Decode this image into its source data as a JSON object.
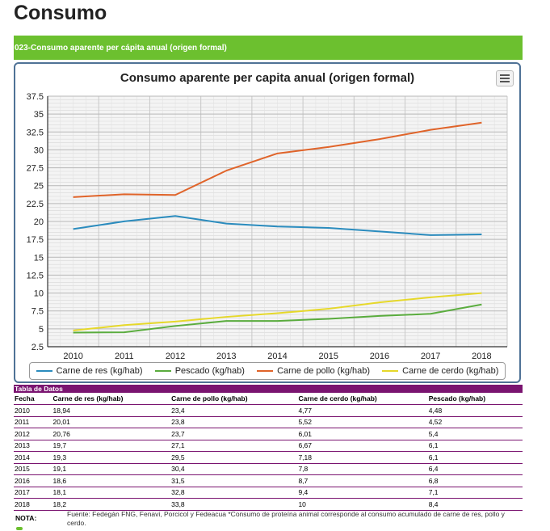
{
  "page": {
    "title": "Consumo",
    "section_label": "023-Consumo aparente per cápita anual (origen formal)"
  },
  "chart_data": {
    "type": "line",
    "title": "Consumo aparente per capita anual (origen formal)",
    "x": [
      "2010",
      "2011",
      "2012",
      "2013",
      "2014",
      "2015",
      "2016",
      "2017",
      "2018"
    ],
    "ylim": [
      2.5,
      37.5
    ],
    "yticks": [
      "2.5",
      "5",
      "7.5",
      "10",
      "12.5",
      "15",
      "17.5",
      "20",
      "22.5",
      "25",
      "27.5",
      "30",
      "32.5",
      "35",
      "37.5"
    ],
    "grid": true,
    "legend_position": "bottom",
    "series": [
      {
        "name": "Carne de res (kg/hab)",
        "color": "#2b8cbe",
        "values": [
          18.94,
          20.01,
          20.76,
          19.7,
          19.3,
          19.1,
          18.6,
          18.1,
          18.2
        ]
      },
      {
        "name": "Pescado (kg/hab)",
        "color": "#5aac3e",
        "values": [
          4.48,
          4.52,
          5.4,
          6.1,
          6.1,
          6.4,
          6.8,
          7.1,
          8.4
        ]
      },
      {
        "name": "Carne de pollo (kg/hab)",
        "color": "#e0642a",
        "values": [
          23.4,
          23.8,
          23.7,
          27.1,
          29.5,
          30.4,
          31.5,
          32.8,
          33.8
        ]
      },
      {
        "name": "Carne de cerdo (kg/hab)",
        "color": "#e6d82a",
        "values": [
          4.77,
          5.52,
          6.01,
          6.67,
          7.18,
          7.8,
          8.7,
          9.4,
          10
        ]
      }
    ]
  },
  "table": {
    "caption": "Tabla de Datos",
    "headers": [
      "Fecha",
      "Carne de res (kg/hab)",
      "Carne de pollo (kg/hab)",
      "Carne de cerdo (kg/hab)",
      "Pescado (kg/hab)"
    ],
    "rows": [
      [
        "2010",
        "18,94",
        "23,4",
        "4,77",
        "4,48"
      ],
      [
        "2011",
        "20,01",
        "23,8",
        "5,52",
        "4,52"
      ],
      [
        "2012",
        "20,76",
        "23,7",
        "6,01",
        "5,4"
      ],
      [
        "2013",
        "19,7",
        "27,1",
        "6,67",
        "6,1"
      ],
      [
        "2014",
        "19,3",
        "29,5",
        "7,18",
        "6,1"
      ],
      [
        "2015",
        "19,1",
        "30,4",
        "7,8",
        "6,4"
      ],
      [
        "2016",
        "18,6",
        "31,5",
        "8,7",
        "6,8"
      ],
      [
        "2017",
        "18,1",
        "32,8",
        "9,4",
        "7,1"
      ],
      [
        "2018",
        "18,2",
        "33,8",
        "10",
        "8,4"
      ]
    ]
  },
  "note": {
    "label": "NOTA:",
    "text": "Fuente: Fedegán FNG, Fenavi, Porcicol y Fedeacua *Consumo de proteína animal corresponde al consumo acumulado de carne de res, pollo y cerdo."
  },
  "icons": {
    "menu": "hamburger-menu-icon"
  }
}
